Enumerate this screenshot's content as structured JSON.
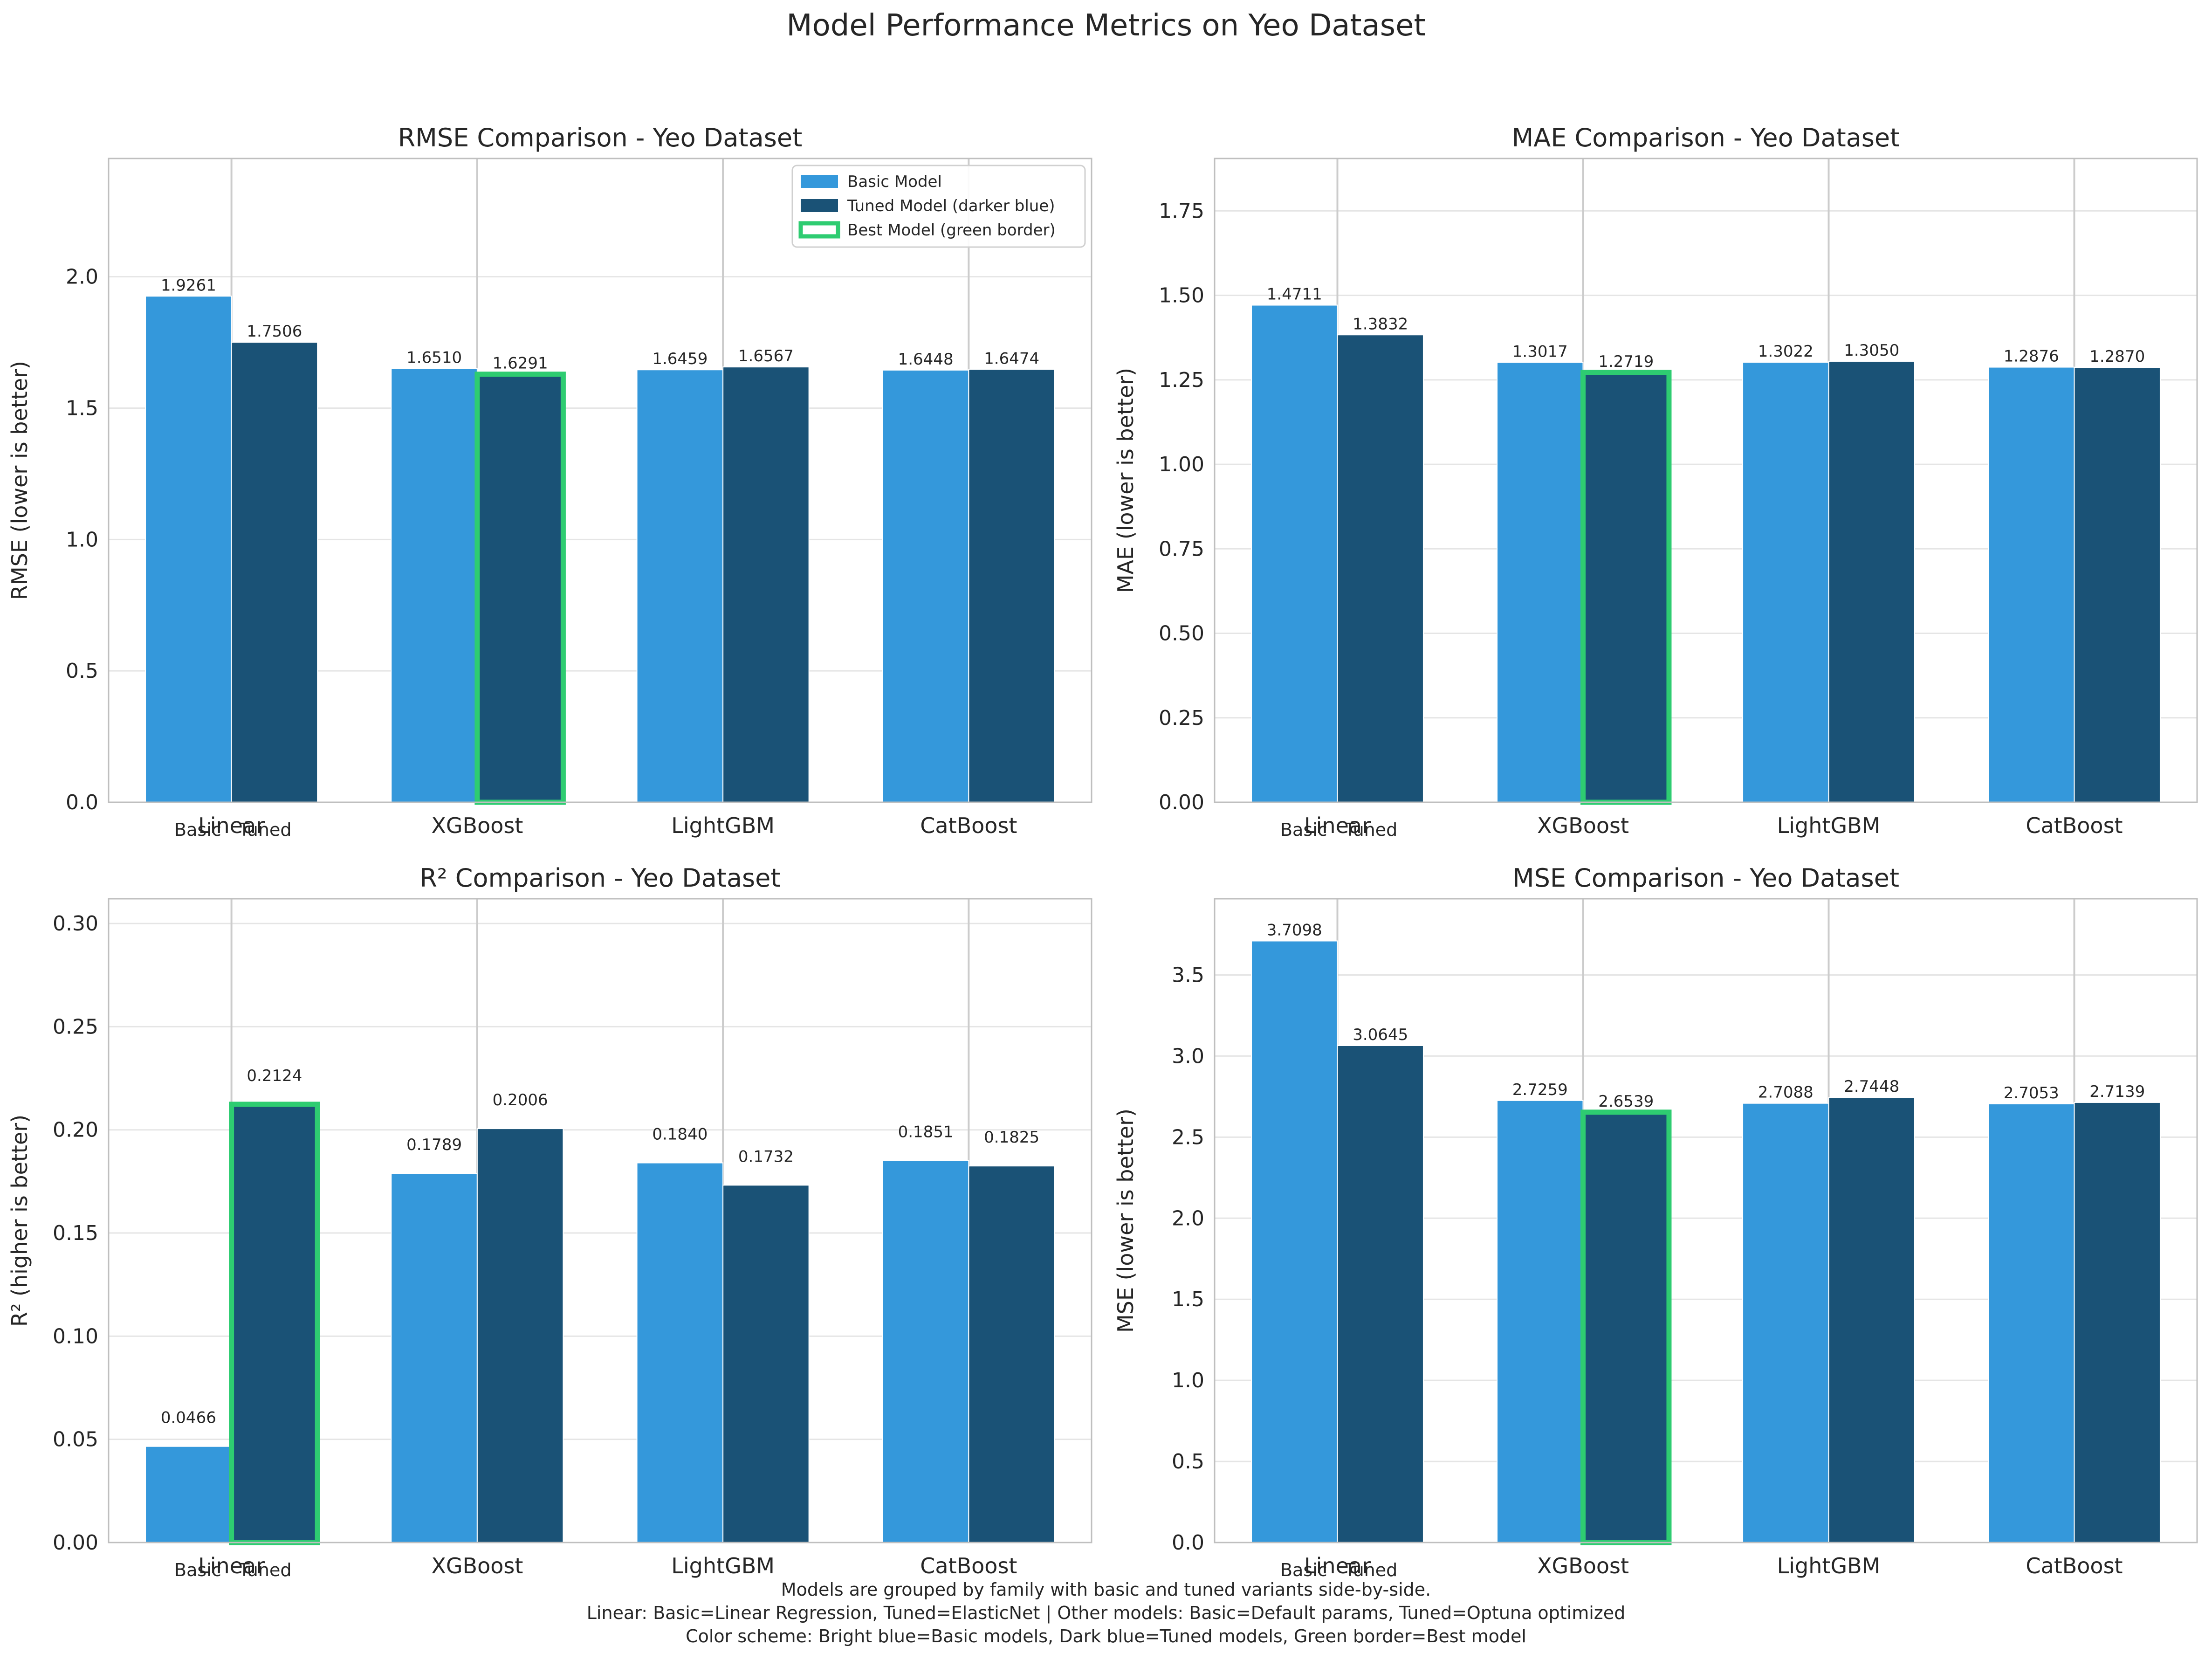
{
  "figure": {
    "title": "Model Performance Metrics on Yeo Dataset",
    "footnote": [
      "Models are grouped by family with basic and tuned variants side-by-side.",
      "Linear: Basic=Linear Regression, Tuned=ElasticNet | Other models: Basic=Default params, Tuned=Optuna optimized",
      "Color scheme: Bright blue=Basic models, Dark blue=Tuned models, Green border=Best model"
    ]
  },
  "colors": {
    "basic": "#3498db",
    "tuned": "#1a5276",
    "best_border": "#2ecc71",
    "grid": "#e5e5e5",
    "spine": "#bfbfbf"
  },
  "legend": {
    "placement": "top-right",
    "entries": [
      "Basic Model",
      "Tuned Model (darker blue)",
      "Best Model (green border)"
    ]
  },
  "chart_data": [
    {
      "type": "bar",
      "title": "RMSE Comparison - Yeo Dataset",
      "ylabel": "RMSE (lower is better)",
      "categories": [
        "Linear",
        "XGBoost",
        "LightGBM",
        "CatBoost"
      ],
      "sublabels": [
        "Basic",
        "Tuned"
      ],
      "series": [
        {
          "name": "Basic Model",
          "values": [
            1.9261,
            1.651,
            1.6459,
            1.6448
          ]
        },
        {
          "name": "Tuned Model (darker blue)",
          "values": [
            1.7506,
            1.6291,
            1.6567,
            1.6474
          ]
        }
      ],
      "value_labels": [
        [
          "1.9261",
          "1.6510",
          "1.6459",
          "1.6448"
        ],
        [
          "1.7506",
          "1.6291",
          "1.6567",
          "1.6474"
        ]
      ],
      "best": {
        "series": 1,
        "category": 1
      },
      "ylim": [
        0,
        2.45
      ],
      "yticks": [
        0.0,
        0.5,
        1.0,
        1.5,
        2.0
      ],
      "ytick_labels": [
        "0.0",
        "0.5",
        "1.0",
        "1.5",
        "2.0"
      ],
      "grid": true,
      "legend": true
    },
    {
      "type": "bar",
      "title": "MAE Comparison - Yeo Dataset",
      "ylabel": "MAE (lower is better)",
      "categories": [
        "Linear",
        "XGBoost",
        "LightGBM",
        "CatBoost"
      ],
      "sublabels": [
        "Basic",
        "Tuned"
      ],
      "series": [
        {
          "name": "Basic Model",
          "values": [
            1.4711,
            1.3017,
            1.3022,
            1.2876
          ]
        },
        {
          "name": "Tuned Model (darker blue)",
          "values": [
            1.3832,
            1.2719,
            1.305,
            1.287
          ]
        }
      ],
      "value_labels": [
        [
          "1.4711",
          "1.3017",
          "1.3022",
          "1.2876"
        ],
        [
          "1.3832",
          "1.2719",
          "1.3050",
          "1.2870"
        ]
      ],
      "best": {
        "series": 1,
        "category": 1
      },
      "ylim": [
        0,
        1.905
      ],
      "yticks": [
        0.0,
        0.25,
        0.5,
        0.75,
        1.0,
        1.25,
        1.5,
        1.75
      ],
      "ytick_labels": [
        "0.00",
        "0.25",
        "0.50",
        "0.75",
        "1.00",
        "1.25",
        "1.50",
        "1.75"
      ],
      "grid": true,
      "legend": false
    },
    {
      "type": "bar",
      "title": "R² Comparison - Yeo Dataset",
      "ylabel": "R² (higher is better)",
      "categories": [
        "Linear",
        "XGBoost",
        "LightGBM",
        "CatBoost"
      ],
      "sublabels": [
        "Basic",
        "Tuned"
      ],
      "series": [
        {
          "name": "Basic Model",
          "values": [
            0.0466,
            0.1789,
            0.184,
            0.1851
          ]
        },
        {
          "name": "Tuned Model (darker blue)",
          "values": [
            0.2124,
            0.2006,
            0.1732,
            0.1825
          ]
        }
      ],
      "value_labels": [
        [
          "0.0466",
          "0.1789",
          "0.1840",
          "0.1851"
        ],
        [
          "0.2124",
          "0.2006",
          "0.1732",
          "0.1825"
        ]
      ],
      "best": {
        "series": 1,
        "category": 0
      },
      "ylim": [
        0,
        0.312
      ],
      "yticks": [
        0.0,
        0.05,
        0.1,
        0.15,
        0.2,
        0.25,
        0.3
      ],
      "ytick_labels": [
        "0.00",
        "0.05",
        "0.10",
        "0.15",
        "0.20",
        "0.25",
        "0.30"
      ],
      "grid": true,
      "legend": false
    },
    {
      "type": "bar",
      "title": "MSE Comparison - Yeo Dataset",
      "ylabel": "MSE (lower is better)",
      "categories": [
        "Linear",
        "XGBoost",
        "LightGBM",
        "CatBoost"
      ],
      "sublabels": [
        "Basic",
        "Tuned"
      ],
      "series": [
        {
          "name": "Basic Model",
          "values": [
            3.7098,
            2.7259,
            2.7088,
            2.7053
          ]
        },
        {
          "name": "Tuned Model (darker blue)",
          "values": [
            3.0645,
            2.6539,
            2.7448,
            2.7139
          ]
        }
      ],
      "value_labels": [
        [
          "3.7098",
          "2.7259",
          "2.7088",
          "2.7053"
        ],
        [
          "3.0645",
          "2.6539",
          "2.7448",
          "2.7139"
        ]
      ],
      "best": {
        "series": 1,
        "category": 1
      },
      "ylim": [
        0,
        3.97
      ],
      "yticks": [
        0.0,
        0.5,
        1.0,
        1.5,
        2.0,
        2.5,
        3.0,
        3.5
      ],
      "ytick_labels": [
        "0.0",
        "0.5",
        "1.0",
        "1.5",
        "2.0",
        "2.5",
        "3.0",
        "3.5"
      ],
      "grid": true,
      "legend": false
    }
  ]
}
